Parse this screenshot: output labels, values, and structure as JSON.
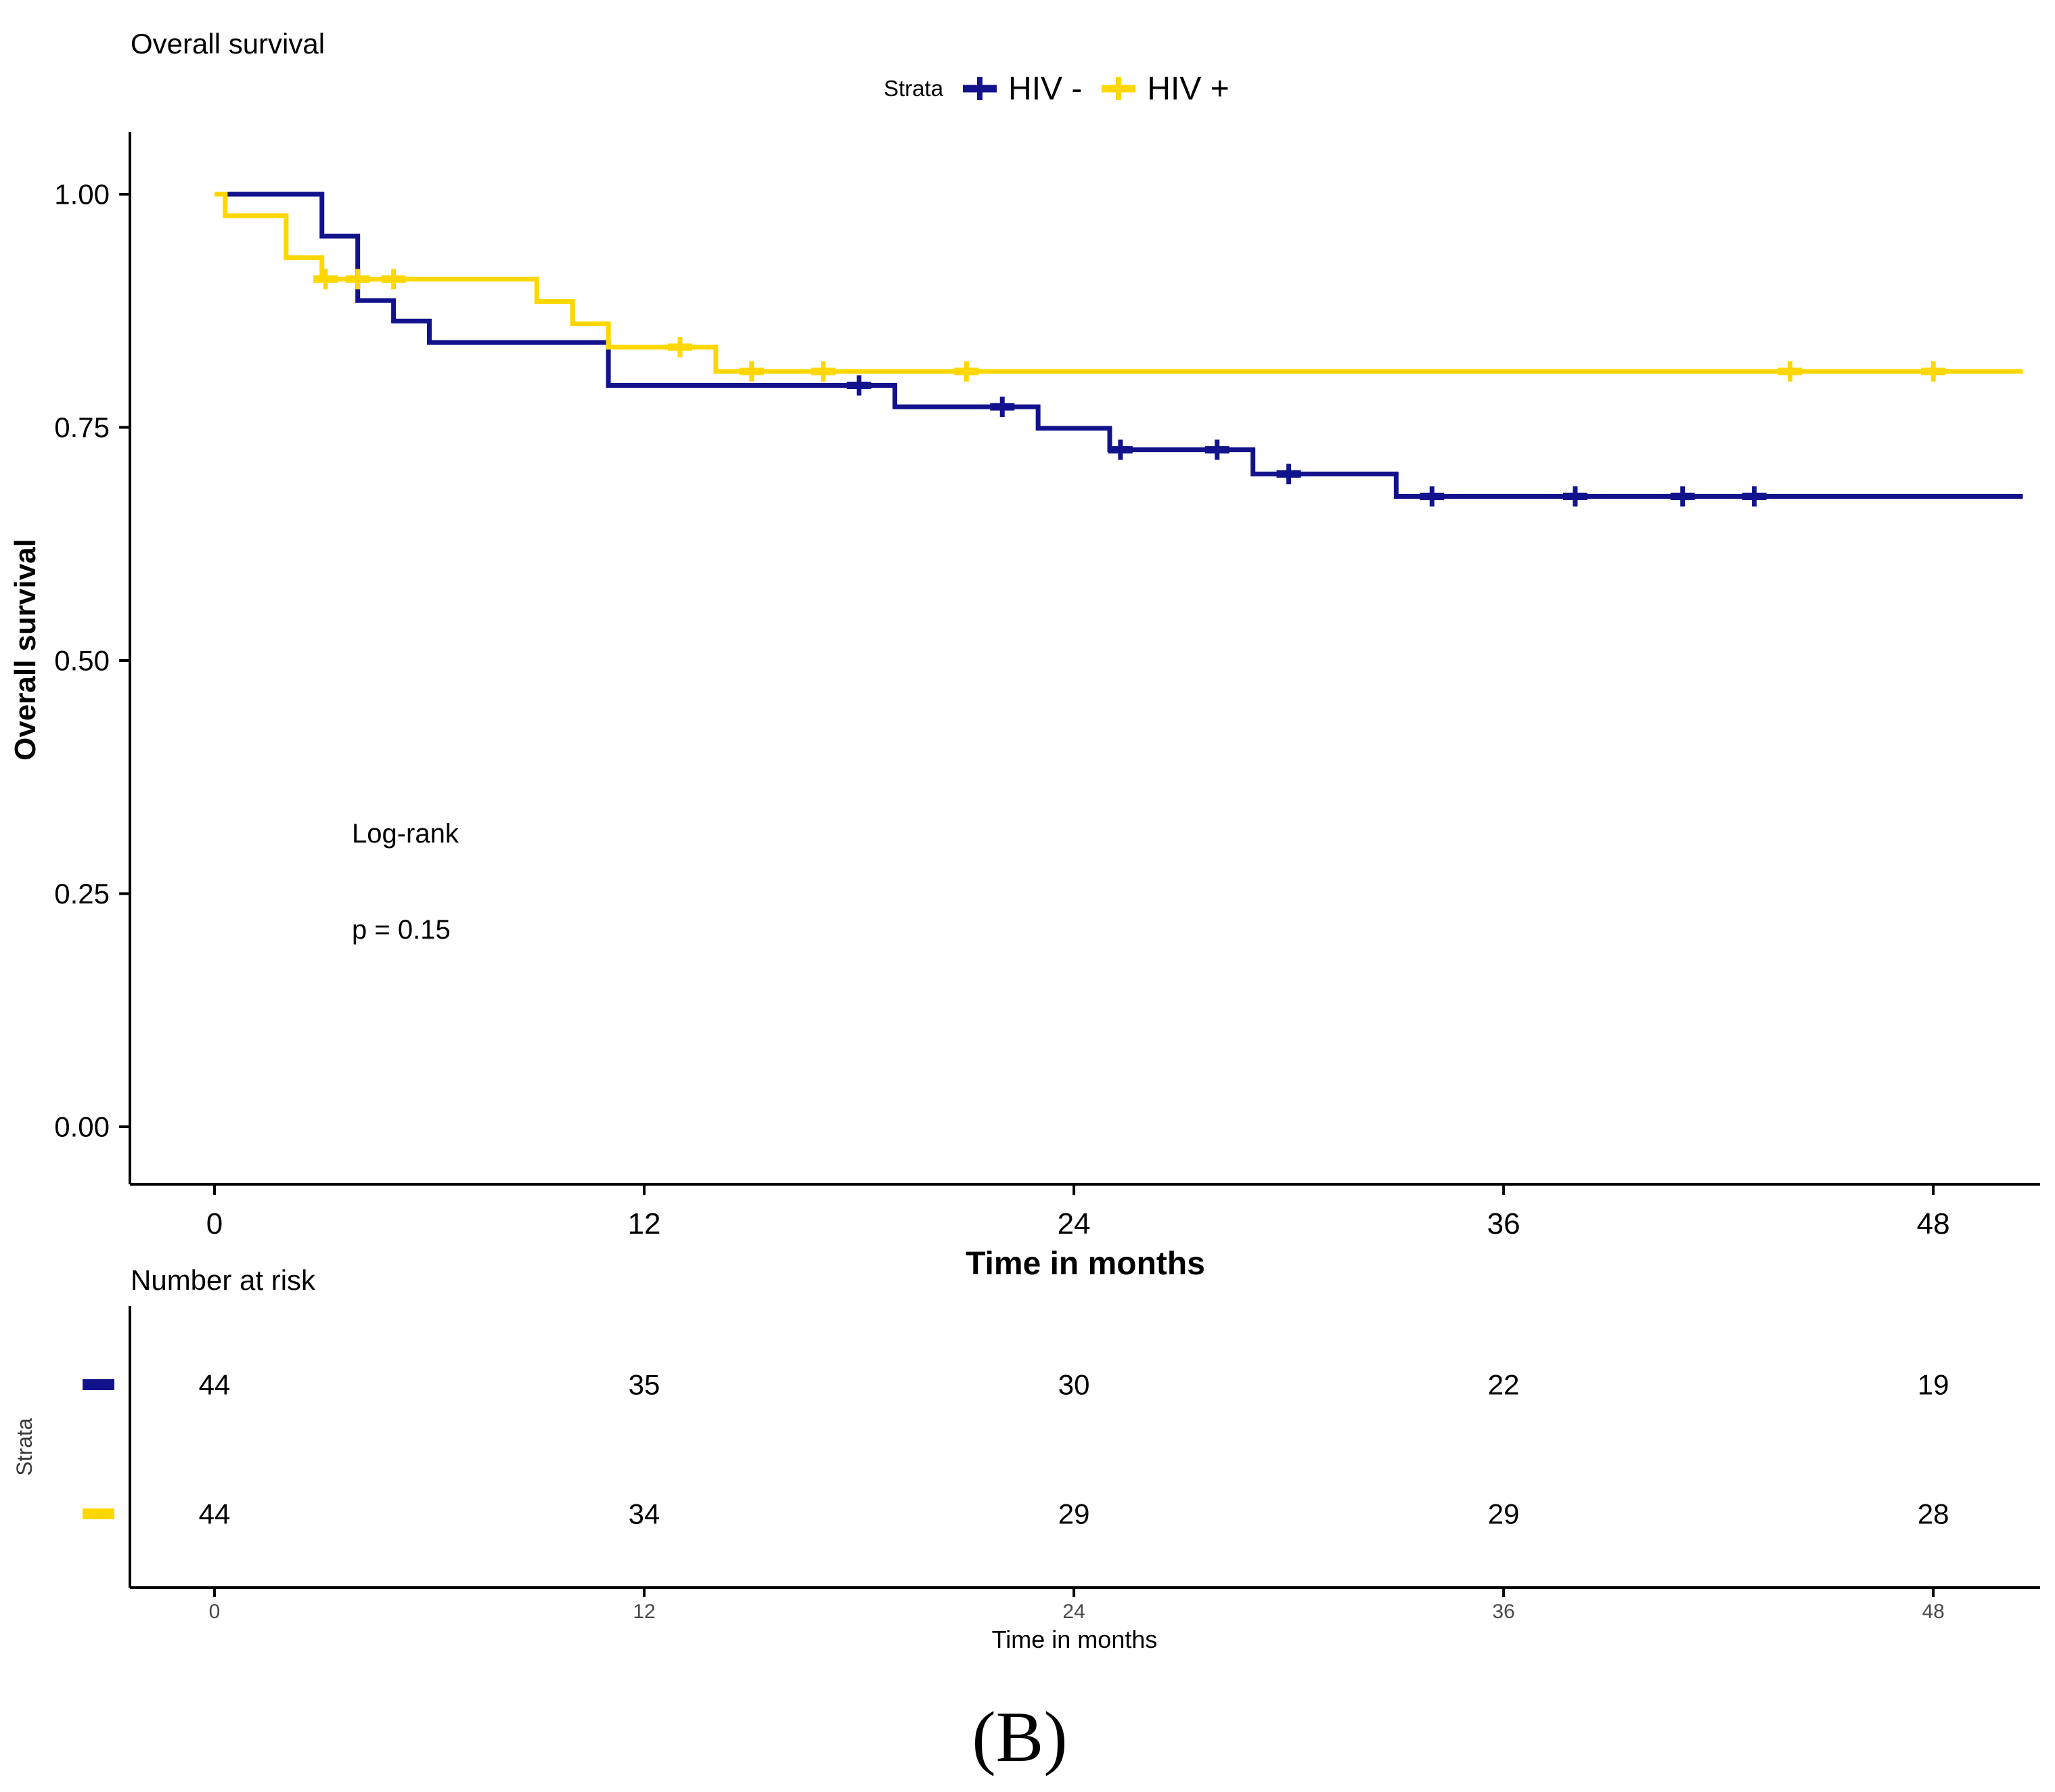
{
  "chart_data": {
    "type": "line",
    "subtype": "kaplan-meier-step",
    "title": "Overall survival",
    "xlabel": "Time in months",
    "ylabel": "Overall survival",
    "xlim": [
      -2.4,
      51
    ],
    "ylim": [
      0,
      1.0
    ],
    "xticks": [
      0,
      12,
      24,
      36,
      48
    ],
    "yticks": [
      1.0,
      0.75,
      0.5,
      0.25,
      0.0
    ],
    "ytick_labels": [
      "1.00",
      "0.75",
      "0.50",
      "0.25",
      "0.00"
    ],
    "grid": false,
    "legend": {
      "title": "Strata",
      "position": "top-center"
    },
    "annotations": [
      {
        "text": "Log-rank"
      },
      {
        "text": "p = 0.15"
      }
    ],
    "series": [
      {
        "name": "HIV -",
        "color": "#12128C",
        "points": [
          [
            0,
            1.0
          ],
          [
            3,
            0.955
          ],
          [
            4,
            0.886
          ],
          [
            5,
            0.864
          ],
          [
            6,
            0.841
          ],
          [
            11,
            0.795
          ],
          [
            19,
            0.772
          ],
          [
            23,
            0.749
          ],
          [
            25,
            0.726
          ],
          [
            29,
            0.7
          ],
          [
            33,
            0.676
          ]
        ],
        "end_time": 50.5,
        "censor_marks": [
          [
            18,
            0.795
          ],
          [
            22,
            0.772
          ],
          [
            25.3,
            0.726
          ],
          [
            28,
            0.726
          ],
          [
            30,
            0.7
          ],
          [
            34,
            0.676
          ],
          [
            38,
            0.676
          ],
          [
            41,
            0.676
          ],
          [
            43,
            0.676
          ]
        ]
      },
      {
        "name": "HIV +",
        "color": "#FFD700",
        "points": [
          [
            0,
            1.0
          ],
          [
            0.3,
            0.977
          ],
          [
            2,
            0.932
          ],
          [
            3,
            0.909
          ],
          [
            9,
            0.885
          ],
          [
            10,
            0.861
          ],
          [
            11,
            0.836
          ],
          [
            14,
            0.81
          ]
        ],
        "end_time": 50.5,
        "censor_marks": [
          [
            3.1,
            0.909
          ],
          [
            4,
            0.909
          ],
          [
            5,
            0.909
          ],
          [
            13,
            0.836
          ],
          [
            15,
            0.81
          ],
          [
            17,
            0.81
          ],
          [
            21,
            0.81
          ],
          [
            44,
            0.81
          ],
          [
            48,
            0.81
          ]
        ]
      }
    ],
    "risk_table": {
      "title": "Number at risk",
      "ylabel": "Strata",
      "xlabel": "Time in months",
      "times": [
        0,
        12,
        24,
        36,
        48
      ],
      "rows": [
        {
          "name": "HIV -",
          "color": "#12128C",
          "values": [
            44,
            35,
            30,
            22,
            19
          ]
        },
        {
          "name": "HIV +",
          "color": "#FFD700",
          "values": [
            44,
            34,
            29,
            29,
            28
          ]
        }
      ]
    },
    "caption": "(B)"
  }
}
